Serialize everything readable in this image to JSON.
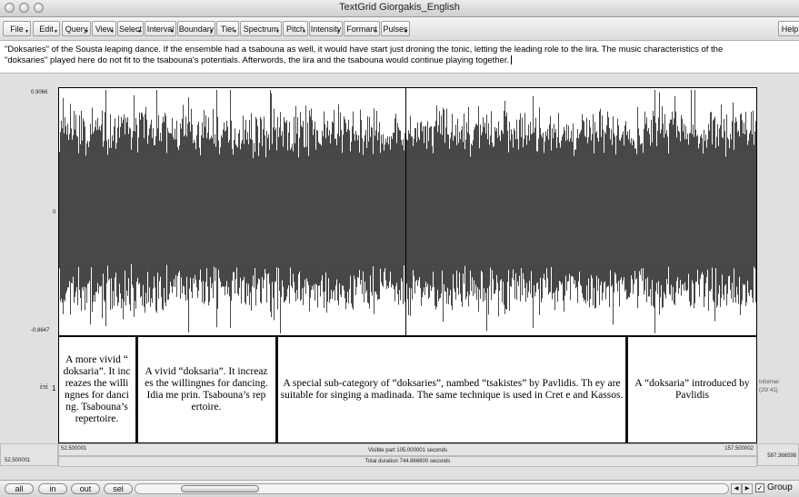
{
  "window": {
    "title": "TextGrid Giorgakis_English"
  },
  "menu": [
    {
      "label": "File",
      "arrow": true
    },
    {
      "label": "Edit",
      "arrow": true
    },
    {
      "label": "Query",
      "arrow": true
    },
    {
      "label": "View",
      "arrow": true
    },
    {
      "label": "Select",
      "arrow": true
    },
    {
      "label": "Interval",
      "arrow": true
    },
    {
      "label": "Boundary",
      "arrow": true
    },
    {
      "label": "Tier",
      "arrow": true
    },
    {
      "label": "Spectrum",
      "arrow": true
    },
    {
      "label": "Pitch",
      "arrow": true
    },
    {
      "label": "Intensity",
      "arrow": true
    },
    {
      "label": "Formant",
      "arrow": true
    },
    {
      "label": "Pulses",
      "arrow": true
    },
    {
      "label": "Help",
      "arrow": false
    }
  ],
  "text_field": {
    "line1": "\"Doksaries\" of the Sousta leaping dance. If the ensemble had a tsabouna as well, it would have start just droning the tonic, letting the leading role to the lira. The music characteristics of the",
    "line2": "\"doksaries\" played here do not fit to the tsabouna's potentials. Afterwords, the lira and the tsabouna would continue playing together."
  },
  "waveform": {
    "y_max": "0.9066",
    "y_zero": "0",
    "y_min": "-0.8647"
  },
  "tier": {
    "name": "ἐτἐ",
    "number": "1",
    "info_line1": "Informer",
    "info_line2": "(20/ 41)",
    "intervals": [
      {
        "text": "A more vivid “ doksaria”. It inc reazes the willi ngnes for danci ng. Tsabouna’s repertoire."
      },
      {
        "text": "A vivid “doksaria”. It increaz es the willingnes for dancing. Idia me prin. Tsabouna’s rep ertoire."
      },
      {
        "text": "A special sub-category of “doksaries”, nambed “tsakistes” by Pavlidis. Th ey are suitable for singing a madinada. The same technique is used in Cret e and Kassos."
      },
      {
        "text": "A “doksaria” introduced by Pavlidis"
      }
    ]
  },
  "time": {
    "left_outer": "52.500001",
    "left_inner": "52.500001",
    "visible": "Visible part 105.000001 seconds",
    "right_inner": "157.500002",
    "right_outer": "587.366598",
    "total": "Total duration 744.866600 seconds"
  },
  "bottom": {
    "buttons": [
      "all",
      "in",
      "out",
      "sel"
    ],
    "group_label": "Group",
    "group_checked": true
  }
}
